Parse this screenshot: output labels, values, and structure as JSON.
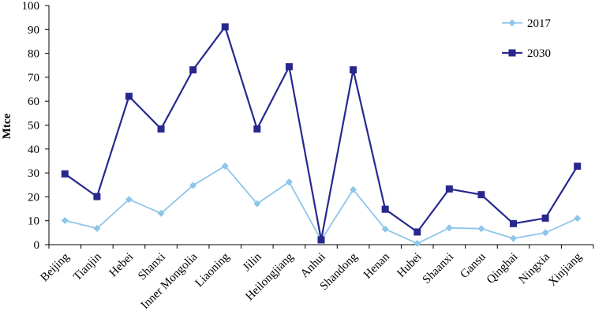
{
  "chart_data": {
    "type": "line",
    "ylabel": "Mtce",
    "xlabel": "",
    "ylim": [
      0,
      100
    ],
    "yticks": [
      0,
      10,
      20,
      30,
      40,
      50,
      60,
      70,
      80,
      90,
      100
    ],
    "grid": false,
    "legend_position": "top-right",
    "categories": [
      "Beijing",
      "Tianjin",
      "Hebei",
      "Shanxi",
      "Inner Mongolia",
      "Liaoning",
      "Jilin",
      "Heilongjiang",
      "Anhui",
      "Shandong",
      "Henan",
      "Hubei",
      "Shaanxi",
      "Gansu",
      "Qinghai",
      "Ningxia",
      "Xinjiang"
    ],
    "series": [
      {
        "name": "2017",
        "color": "#8ec6ea",
        "marker": "diamond",
        "values": [
          10.1,
          6.8,
          18.9,
          13.1,
          24.8,
          32.9,
          17.1,
          26.2,
          1.9,
          23.0,
          6.5,
          0.5,
          7.0,
          6.7,
          2.6,
          5.0,
          11.0
        ]
      },
      {
        "name": "2030",
        "color": "#27288e",
        "marker": "square",
        "values": [
          29.6,
          20.1,
          62.0,
          48.4,
          73.1,
          91.1,
          48.4,
          74.4,
          2.0,
          73.1,
          14.8,
          5.3,
          23.3,
          20.9,
          8.8,
          11.1,
          32.8
        ]
      }
    ]
  }
}
